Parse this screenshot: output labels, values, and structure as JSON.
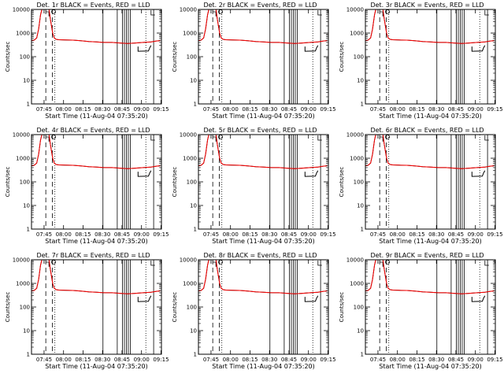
{
  "chart_data": [
    {
      "type": "line",
      "title": "Det. 1r BLACK = Events, RED = LLD",
      "xlabel": "Start Time (11-Aug-04 07:35:20)",
      "ylabel": "Counts/sec",
      "ylog": true,
      "ylim": [
        1,
        10000
      ],
      "xticks": [
        "07:45",
        "08:00",
        "08:15",
        "08:30",
        "08:45",
        "09:00",
        "09:15"
      ],
      "yticks": [
        "1",
        "10",
        "100",
        "1000",
        "10000"
      ],
      "series": [
        {
          "color": "#000000"
        },
        {
          "color": "#ff0000"
        }
      ]
    },
    {
      "type": "line",
      "title": "Det. 2r BLACK = Events, RED = LLD",
      "xlabel": "Start Time (11-Aug-04 07:35:20)",
      "ylabel": "Counts/sec",
      "ylog": true,
      "ylim": [
        1,
        10000
      ],
      "xticks": [
        "07:45",
        "08:00",
        "08:15",
        "08:30",
        "08:45",
        "09:00",
        "09:15"
      ],
      "yticks": [
        "1",
        "10",
        "100",
        "1000",
        "10000"
      ],
      "series": [
        {
          "color": "#000000"
        },
        {
          "color": "#ff0000"
        }
      ]
    },
    {
      "type": "line",
      "title": "Det. 3r BLACK = Events, RED = LLD",
      "xlabel": "Start Time (11-Aug-04 07:35:20)",
      "ylabel": "Counts/sec",
      "ylog": true,
      "ylim": [
        1,
        10000
      ],
      "xticks": [
        "07:45",
        "08:00",
        "08:15",
        "08:30",
        "08:45",
        "09:00",
        "09:15"
      ],
      "yticks": [
        "1",
        "10",
        "100",
        "1000",
        "10000"
      ],
      "series": [
        {
          "color": "#000000"
        },
        {
          "color": "#ff0000"
        }
      ]
    },
    {
      "type": "line",
      "title": "Det. 4r BLACK = Events, RED = LLD",
      "xlabel": "Start Time (11-Aug-04 07:35:20)",
      "ylabel": "Counts/sec",
      "ylog": true,
      "ylim": [
        1,
        10000
      ],
      "xticks": [
        "07:45",
        "08:00",
        "08:15",
        "08:30",
        "08:45",
        "09:00",
        "09:15"
      ],
      "yticks": [
        "1",
        "10",
        "100",
        "1000",
        "10000"
      ],
      "series": [
        {
          "color": "#000000"
        },
        {
          "color": "#ff0000"
        }
      ]
    },
    {
      "type": "line",
      "title": "Det. 5r BLACK = Events, RED = LLD",
      "xlabel": "Start Time (11-Aug-04 07:35:20)",
      "ylabel": "Counts/sec",
      "ylog": true,
      "ylim": [
        1,
        10000
      ],
      "xticks": [
        "07:45",
        "08:00",
        "08:15",
        "08:30",
        "08:45",
        "09:00",
        "09:15"
      ],
      "yticks": [
        "1",
        "10",
        "100",
        "1000",
        "10000"
      ],
      "series": [
        {
          "color": "#000000"
        },
        {
          "color": "#ff0000"
        }
      ]
    },
    {
      "type": "line",
      "title": "Det. 6r BLACK = Events, RED = LLD",
      "xlabel": "Start Time (11-Aug-04 07:35:20)",
      "ylabel": "Counts/sec",
      "ylog": true,
      "ylim": [
        1,
        10000
      ],
      "xticks": [
        "07:45",
        "08:00",
        "08:15",
        "08:30",
        "08:45",
        "09:00",
        "09:15"
      ],
      "yticks": [
        "1",
        "10",
        "100",
        "1000",
        "10000"
      ],
      "series": [
        {
          "color": "#000000"
        },
        {
          "color": "#ff0000"
        }
      ]
    },
    {
      "type": "line",
      "title": "Det. 7r BLACK = Events, RED = LLD",
      "xlabel": "Start Time (11-Aug-04 07:35:20)",
      "ylabel": "Counts/sec",
      "ylog": true,
      "ylim": [
        1,
        10000
      ],
      "xticks": [
        "07:45",
        "08:00",
        "08:15",
        "08:30",
        "08:45",
        "09:00",
        "09:15"
      ],
      "yticks": [
        "1",
        "10",
        "100",
        "1000",
        "10000"
      ],
      "series": [
        {
          "color": "#000000"
        },
        {
          "color": "#ff0000"
        }
      ]
    },
    {
      "type": "line",
      "title": "Det. 8r BLACK = Events, RED = LLD",
      "xlabel": "Start Time (11-Aug-04 07:35:20)",
      "ylabel": "Counts/sec",
      "ylog": true,
      "ylim": [
        1,
        10000
      ],
      "xticks": [
        "07:45",
        "08:00",
        "08:15",
        "08:30",
        "08:45",
        "09:00",
        "09:15"
      ],
      "yticks": [
        "1",
        "10",
        "100",
        "1000",
        "10000"
      ],
      "series": [
        {
          "color": "#000000"
        },
        {
          "color": "#ff0000"
        }
      ]
    },
    {
      "type": "line",
      "title": "Det. 9r BLACK = Events, RED = LLD",
      "xlabel": "Start Time (11-Aug-04 07:35:20)",
      "ylabel": "Counts/sec",
      "ylog": true,
      "ylim": [
        1,
        10000
      ],
      "xticks": [
        "07:45",
        "08:00",
        "08:15",
        "08:30",
        "08:45",
        "09:00",
        "09:15"
      ],
      "yticks": [
        "1",
        "10",
        "100",
        "1000",
        "10000"
      ],
      "series": [
        {
          "color": "#000000"
        },
        {
          "color": "#ff0000"
        }
      ]
    }
  ]
}
